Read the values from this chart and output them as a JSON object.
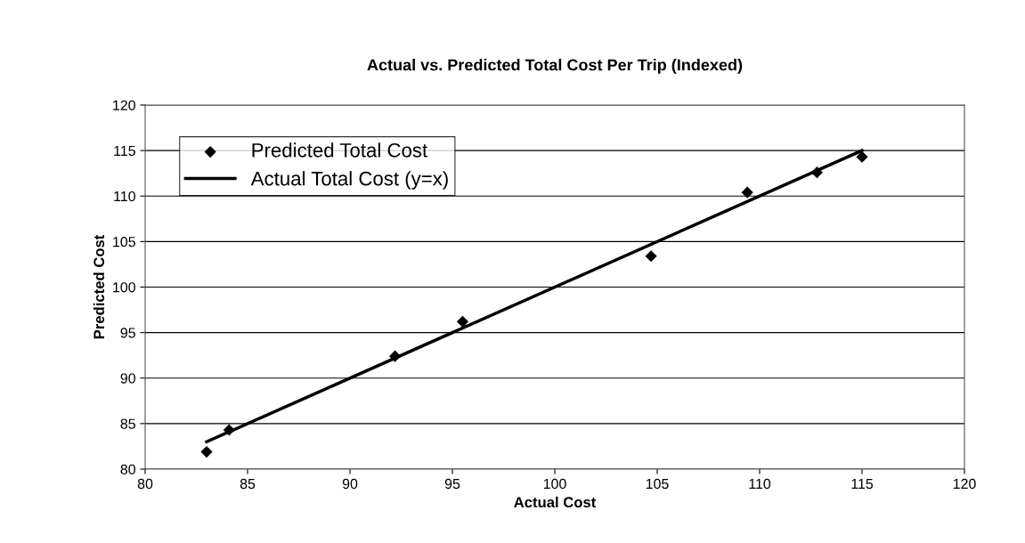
{
  "chart_data": {
    "type": "scatter",
    "title": "Actual vs. Predicted Total Cost Per Trip (Indexed)",
    "xlabel": "Actual Cost",
    "ylabel": "Predicted Cost",
    "series": [
      {
        "name": "Predicted Total Cost",
        "color": "#000000",
        "marker": "diamond",
        "x": [
          83.0,
          84.1,
          92.2,
          95.5,
          104.7,
          109.4,
          112.8,
          115.0
        ],
        "values": [
          81.9,
          84.3,
          92.4,
          96.2,
          103.4,
          110.4,
          112.6,
          114.3
        ]
      },
      {
        "name": "Actual Total Cost (y=x)",
        "type": "line",
        "color": "#000000",
        "line_style": "solid",
        "x": [
          83.0,
          115.0
        ],
        "values": [
          83.0,
          115.0
        ]
      }
    ],
    "xlim": [
      80,
      120
    ],
    "xticks": [
      80,
      85,
      90,
      95,
      100,
      105,
      110,
      115,
      120
    ],
    "ylim": [
      80,
      120
    ],
    "yticks": [
      80,
      85,
      90,
      95,
      100,
      105,
      110,
      115,
      120
    ],
    "grid": "y",
    "legend": "top left"
  }
}
